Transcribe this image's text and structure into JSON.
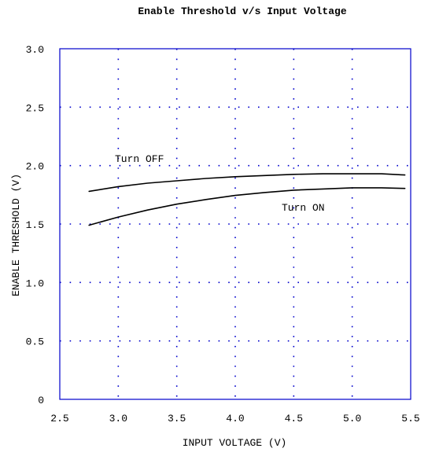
{
  "chart_data": {
    "type": "line",
    "title": "Enable Threshold v/s Input Voltage",
    "xlabel": "INPUT VOLTAGE (V)",
    "ylabel": "ENABLE THRESHOLD (V)",
    "xlim": [
      2.5,
      5.5
    ],
    "ylim": [
      0,
      3.0
    ],
    "x_ticks": [
      "2.5",
      "3.0",
      "3.5",
      "4.0",
      "4.5",
      "5.0",
      "5.5"
    ],
    "y_ticks": [
      "0",
      "0.5",
      "1.0",
      "1.5",
      "2.0",
      "2.5",
      "3.0"
    ],
    "grid": true,
    "grid_color": "#0000cc",
    "frame_color": "#0000cc",
    "line_color": "#000000",
    "series": [
      {
        "name": "Turn OFF",
        "x": [
          2.75,
          3.0,
          3.25,
          3.5,
          3.75,
          4.0,
          4.25,
          4.5,
          4.75,
          5.0,
          5.25,
          5.45
        ],
        "y": [
          1.78,
          1.82,
          1.85,
          1.87,
          1.89,
          1.905,
          1.915,
          1.925,
          1.93,
          1.93,
          1.93,
          1.92
        ]
      },
      {
        "name": "Turn ON",
        "x": [
          2.75,
          3.0,
          3.25,
          3.5,
          3.75,
          4.0,
          4.25,
          4.5,
          4.75,
          5.0,
          5.25,
          5.45
        ],
        "y": [
          1.49,
          1.56,
          1.62,
          1.67,
          1.71,
          1.745,
          1.77,
          1.79,
          1.8,
          1.81,
          1.81,
          1.805
        ]
      }
    ]
  }
}
